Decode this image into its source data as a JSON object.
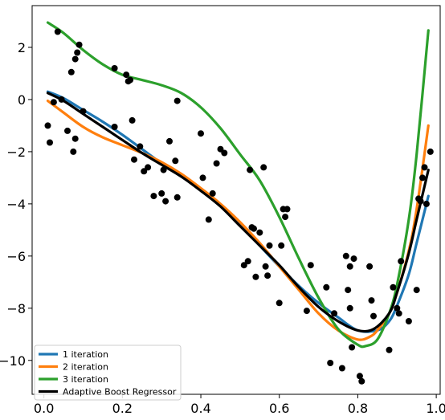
{
  "chart_data": {
    "type": "scatter",
    "title": "",
    "xlabel": "",
    "ylabel": "",
    "xlim": [
      -0.03,
      1.01
    ],
    "ylim": [
      -11.3,
      3.6
    ],
    "xticks": [
      0.0,
      0.2,
      0.4,
      0.6,
      0.8,
      1.0
    ],
    "xtick_labels": [
      "0.0",
      "0.2",
      "0.4",
      "0.6",
      "0.8",
      "1.0"
    ],
    "yticks": [
      2,
      0,
      -2,
      -4,
      -6,
      -8,
      -10
    ],
    "ytick_labels": [
      "2",
      "0",
      "−2",
      "−4",
      "−6",
      "−8",
      "−10"
    ],
    "grid": false,
    "legend_position": "lower-left",
    "scatter": {
      "color": "#000000",
      "points": [
        [
          0.01,
          -1.0
        ],
        [
          0.015,
          -1.65
        ],
        [
          0.025,
          -0.1
        ],
        [
          0.035,
          2.6
        ],
        [
          0.045,
          0.0
        ],
        [
          0.06,
          -1.2
        ],
        [
          0.07,
          1.05
        ],
        [
          0.075,
          -2.0
        ],
        [
          0.08,
          1.55
        ],
        [
          0.085,
          1.8
        ],
        [
          0.09,
          2.1
        ],
        [
          0.08,
          -1.5
        ],
        [
          0.1,
          -0.45
        ],
        [
          0.18,
          -1.05
        ],
        [
          0.18,
          1.2
        ],
        [
          0.21,
          0.95
        ],
        [
          0.215,
          0.7
        ],
        [
          0.22,
          0.75
        ],
        [
          0.225,
          -0.8
        ],
        [
          0.23,
          -2.3
        ],
        [
          0.245,
          -1.8
        ],
        [
          0.255,
          -2.75
        ],
        [
          0.265,
          -2.6
        ],
        [
          0.28,
          -3.7
        ],
        [
          0.3,
          -3.6
        ],
        [
          0.305,
          -2.7
        ],
        [
          0.31,
          -3.9
        ],
        [
          0.32,
          -1.6
        ],
        [
          0.335,
          -2.35
        ],
        [
          0.34,
          -3.75
        ],
        [
          0.34,
          -0.05
        ],
        [
          0.4,
          -1.3
        ],
        [
          0.405,
          -3.0
        ],
        [
          0.42,
          -4.6
        ],
        [
          0.43,
          -3.6
        ],
        [
          0.44,
          -2.45
        ],
        [
          0.45,
          -1.9
        ],
        [
          0.46,
          -2.05
        ],
        [
          0.51,
          -6.35
        ],
        [
          0.52,
          -6.2
        ],
        [
          0.525,
          -2.7
        ],
        [
          0.53,
          -4.9
        ],
        [
          0.535,
          -4.95
        ],
        [
          0.54,
          -6.8
        ],
        [
          0.55,
          -5.1
        ],
        [
          0.56,
          -2.6
        ],
        [
          0.565,
          -6.4
        ],
        [
          0.57,
          -6.75
        ],
        [
          0.575,
          -5.6
        ],
        [
          0.6,
          -7.8
        ],
        [
          0.605,
          -5.6
        ],
        [
          0.61,
          -4.2
        ],
        [
          0.615,
          -4.5
        ],
        [
          0.62,
          -4.2
        ],
        [
          0.67,
          -8.1
        ],
        [
          0.68,
          -6.35
        ],
        [
          0.72,
          -7.2
        ],
        [
          0.73,
          -10.1
        ],
        [
          0.74,
          -8.2
        ],
        [
          0.76,
          -10.3
        ],
        [
          0.77,
          -6.0
        ],
        [
          0.775,
          -7.3
        ],
        [
          0.78,
          -8.0
        ],
        [
          0.78,
          -6.4
        ],
        [
          0.785,
          -9.5
        ],
        [
          0.79,
          -6.1
        ],
        [
          0.805,
          -10.6
        ],
        [
          0.81,
          -10.8
        ],
        [
          0.83,
          -6.4
        ],
        [
          0.835,
          -7.7
        ],
        [
          0.84,
          -8.3
        ],
        [
          0.88,
          -9.6
        ],
        [
          0.89,
          -7.2
        ],
        [
          0.9,
          -8.0
        ],
        [
          0.905,
          -8.2
        ],
        [
          0.91,
          -6.2
        ],
        [
          0.93,
          -8.5
        ],
        [
          0.95,
          -7.3
        ],
        [
          0.955,
          -3.8
        ],
        [
          0.96,
          -3.9
        ],
        [
          0.965,
          -3.0
        ],
        [
          0.97,
          -2.6
        ],
        [
          0.975,
          -4.0
        ],
        [
          0.985,
          -2.0
        ]
      ]
    },
    "series": [
      {
        "name": "1 iteration",
        "color": "#1f77b4",
        "x": [
          0.01,
          0.05,
          0.1,
          0.15,
          0.2,
          0.25,
          0.3,
          0.35,
          0.4,
          0.45,
          0.5,
          0.55,
          0.6,
          0.65,
          0.7,
          0.75,
          0.8,
          0.85,
          0.88,
          0.9,
          0.93,
          0.95,
          0.98
        ],
        "y": [
          0.3,
          0.05,
          -0.4,
          -0.85,
          -1.35,
          -1.9,
          -2.45,
          -2.95,
          -3.45,
          -4.05,
          -4.8,
          -5.6,
          -6.4,
          -7.15,
          -7.8,
          -8.35,
          -8.85,
          -8.85,
          -8.5,
          -7.9,
          -6.7,
          -5.5,
          -3.7
        ]
      },
      {
        "name": "2 iteration",
        "color": "#ff7f0e",
        "x": [
          0.01,
          0.05,
          0.1,
          0.15,
          0.2,
          0.25,
          0.3,
          0.35,
          0.4,
          0.45,
          0.5,
          0.55,
          0.6,
          0.65,
          0.7,
          0.75,
          0.8,
          0.83,
          0.85,
          0.88,
          0.9,
          0.93,
          0.95,
          0.98
        ],
        "y": [
          -0.05,
          -0.5,
          -1.05,
          -1.45,
          -1.75,
          -2.05,
          -2.4,
          -2.85,
          -3.4,
          -4.0,
          -4.7,
          -5.5,
          -6.4,
          -7.3,
          -8.2,
          -8.85,
          -9.2,
          -9.1,
          -8.85,
          -8.2,
          -7.4,
          -5.8,
          -4.2,
          -1.0
        ]
      },
      {
        "name": "3 iteration",
        "color": "#2ca02c",
        "x": [
          0.01,
          0.05,
          0.1,
          0.15,
          0.2,
          0.25,
          0.3,
          0.35,
          0.4,
          0.45,
          0.5,
          0.55,
          0.6,
          0.65,
          0.7,
          0.75,
          0.8,
          0.82,
          0.85,
          0.88,
          0.9,
          0.93,
          0.95,
          0.98
        ],
        "y": [
          2.95,
          2.55,
          1.9,
          1.35,
          0.95,
          0.75,
          0.55,
          0.25,
          -0.3,
          -1.1,
          -2.1,
          -3.1,
          -4.5,
          -6.1,
          -7.6,
          -8.8,
          -9.4,
          -9.45,
          -9.2,
          -8.2,
          -7.1,
          -4.6,
          -2.1,
          2.65
        ]
      },
      {
        "name": "Adaptive Boost Regressor",
        "color": "#000000",
        "x": [
          0.01,
          0.05,
          0.1,
          0.15,
          0.2,
          0.25,
          0.3,
          0.35,
          0.4,
          0.45,
          0.5,
          0.55,
          0.6,
          0.65,
          0.7,
          0.75,
          0.8,
          0.84,
          0.88,
          0.9,
          0.93,
          0.95,
          0.98
        ],
        "y": [
          0.25,
          -0.05,
          -0.55,
          -1.05,
          -1.55,
          -2.05,
          -2.5,
          -2.95,
          -3.5,
          -4.1,
          -4.85,
          -5.6,
          -6.35,
          -7.2,
          -7.95,
          -8.5,
          -8.85,
          -8.8,
          -8.2,
          -7.4,
          -5.9,
          -4.6,
          -2.7
        ]
      }
    ]
  }
}
